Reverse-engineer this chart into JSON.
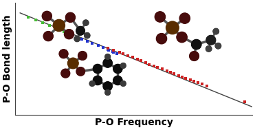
{
  "title": "",
  "xlabel": "P-O Frequency",
  "ylabel": "P-O Bond length",
  "bg_color": "#ffffff",
  "line_color": "#444444",
  "scatter_green": {
    "x": [
      0.055,
      0.085,
      0.115,
      0.145,
      0.175,
      0.205,
      0.235
    ],
    "y": [
      0.87,
      0.845,
      0.82,
      0.795,
      0.768,
      0.742,
      0.715
    ],
    "color": "#44bb33",
    "size": 6
  },
  "scatter_blue": {
    "x": [
      0.235,
      0.26,
      0.28,
      0.305,
      0.325,
      0.35,
      0.37,
      0.39,
      0.41,
      0.43,
      0.395,
      0.415
    ],
    "y": [
      0.715,
      0.695,
      0.675,
      0.658,
      0.64,
      0.62,
      0.602,
      0.584,
      0.566,
      0.548,
      0.575,
      0.558
    ],
    "color": "#2233cc",
    "size": 6
  },
  "scatter_red": {
    "x": [
      0.39,
      0.415,
      0.44,
      0.455,
      0.475,
      0.495,
      0.515,
      0.53,
      0.55,
      0.565,
      0.585,
      0.6,
      0.62,
      0.64,
      0.655,
      0.67,
      0.69,
      0.705,
      0.72,
      0.74,
      0.755,
      0.77,
      0.79,
      0.81,
      0.97
    ],
    "y": [
      0.595,
      0.578,
      0.558,
      0.544,
      0.528,
      0.512,
      0.496,
      0.482,
      0.465,
      0.45,
      0.436,
      0.422,
      0.408,
      0.392,
      0.378,
      0.365,
      0.35,
      0.338,
      0.325,
      0.31,
      0.298,
      0.286,
      0.272,
      0.258,
      0.115
    ],
    "color": "#cc2222",
    "size": 6
  },
  "line_x": [
    0.02,
    1.0
  ],
  "line_y": [
    0.91,
    0.07
  ],
  "xlim": [
    0.0,
    1.0
  ],
  "ylim": [
    0.0,
    1.0
  ],
  "xlabel_fontsize": 10,
  "ylabel_fontsize": 10
}
